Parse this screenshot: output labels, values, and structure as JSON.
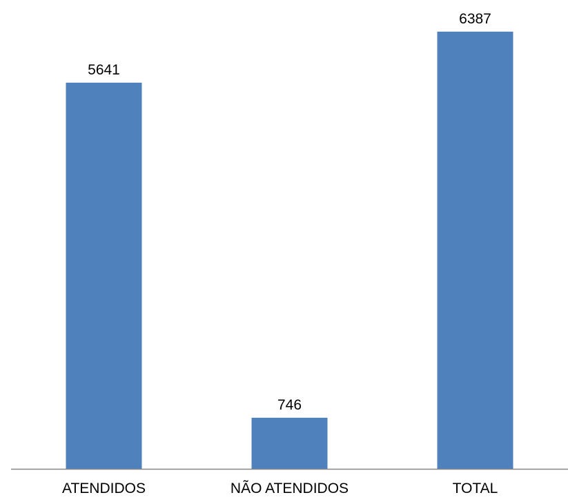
{
  "chart_data": {
    "type": "bar",
    "categories": [
      "ATENDIDOS",
      "NÃO ATENDIDOS",
      "TOTAL"
    ],
    "values": [
      5641,
      746,
      6387
    ],
    "data_labels": [
      "5641",
      "746",
      "6387"
    ],
    "ylim": [
      0,
      7000
    ],
    "grid": false,
    "legend": "none",
    "bar_color": "#4F81BD",
    "axis_color": "#868686"
  }
}
